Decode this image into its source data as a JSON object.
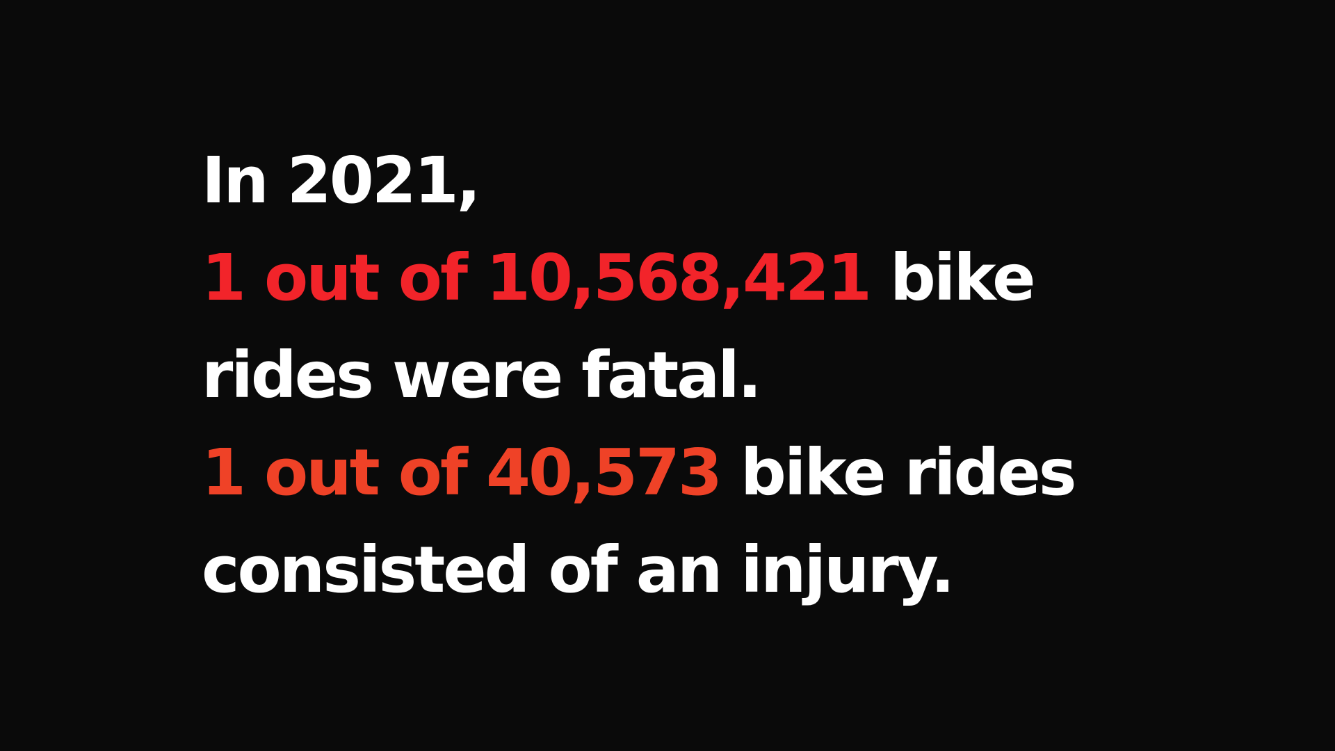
{
  "colors": {
    "background": "#0a0a0a",
    "text": "#ffffff",
    "highlight_fatal": "#f2242a",
    "highlight_injury": "#ef4227"
  },
  "intro": "In 2021,",
  "fatal": {
    "highlight": "1 out of 10,568,421",
    "rest_line1": " bike",
    "rest_line2": "rides were fatal."
  },
  "injury": {
    "highlight": "1 out of 40,573",
    "rest_line1": " bike rides",
    "rest_line2": "consisted of an injury."
  }
}
